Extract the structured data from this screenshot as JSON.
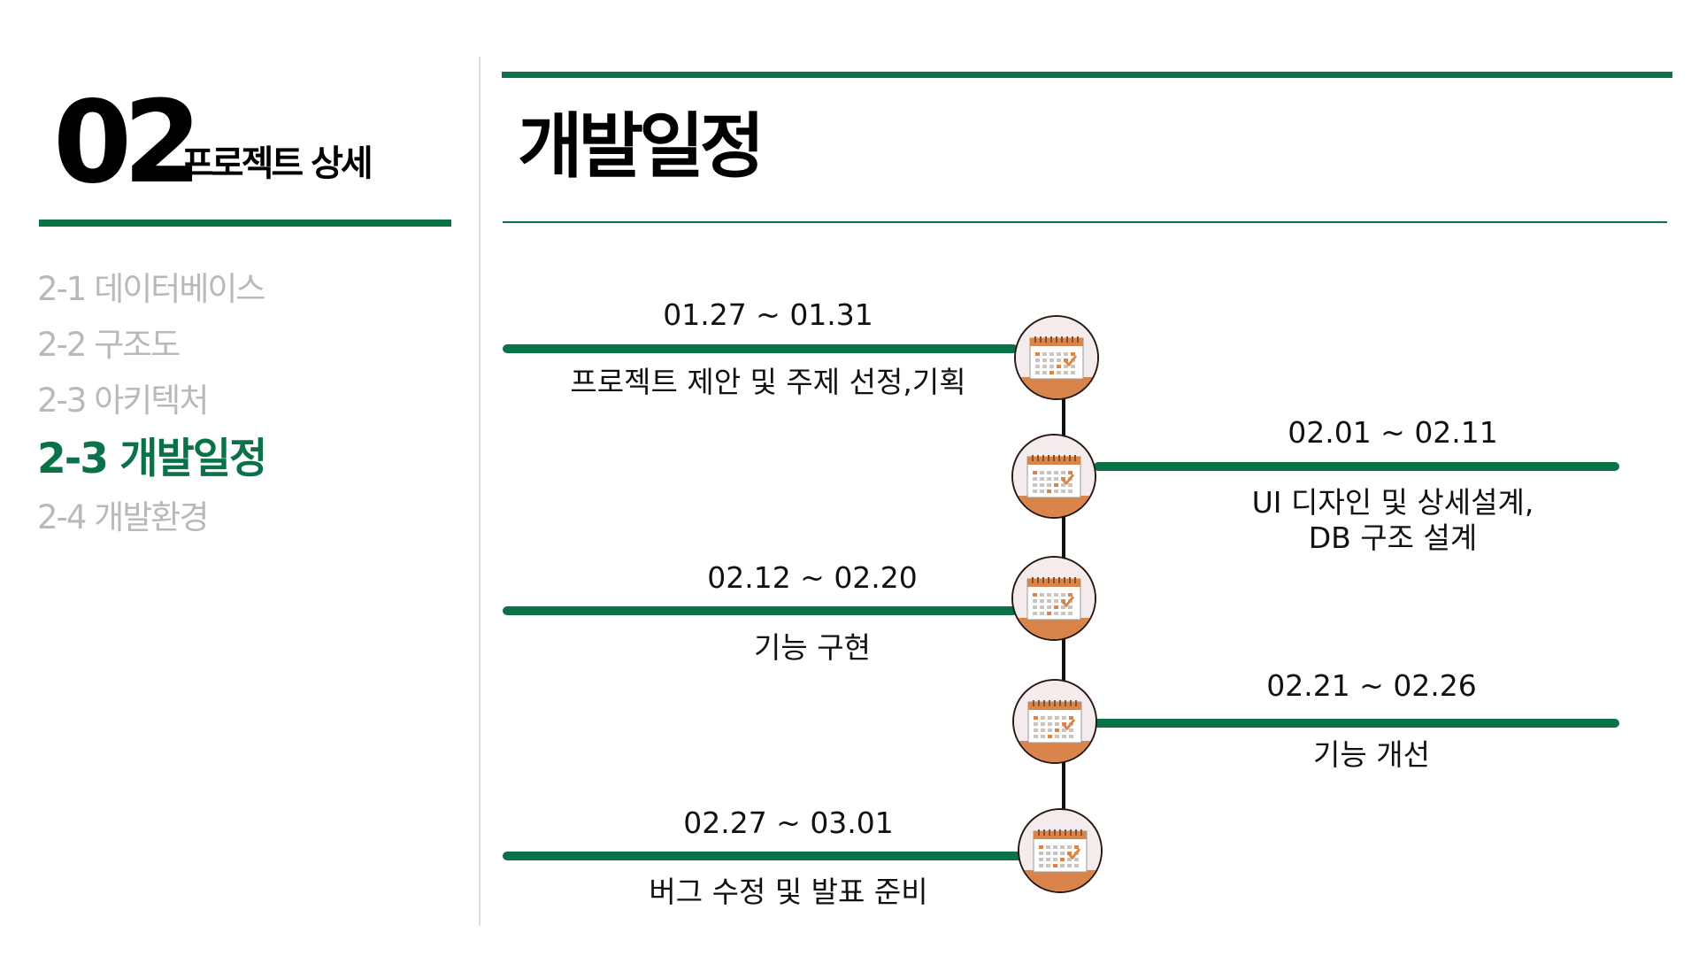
{
  "section": {
    "number": "02",
    "title": "프로젝트 상세"
  },
  "nav": {
    "items": [
      {
        "label": "2-1 데이터베이스",
        "active": false
      },
      {
        "label": "2-2 구조도",
        "active": false
      },
      {
        "label": "2-3 아키텍처",
        "active": false
      },
      {
        "label": "2-3 개발일정",
        "active": true
      },
      {
        "label": "2-4 개발환경",
        "active": false
      }
    ]
  },
  "page": {
    "title": "개발일정"
  },
  "timeline": [
    {
      "date": "01.27 ~ 01.31",
      "task": "프로젝트 제안 및 주제 선정,기획",
      "side": "left"
    },
    {
      "date": "02.01 ~ 02.11",
      "task": "UI 디자인 및 상세설계,\nDB 구조 설계",
      "side": "right"
    },
    {
      "date": "02.12 ~ 02.20",
      "task": "기능 구현",
      "side": "left"
    },
    {
      "date": "02.21 ~ 02.26",
      "task": "기능 개선",
      "side": "right"
    },
    {
      "date": "02.27 ~ 03.01",
      "task": "버그 수정 및 발표 준비",
      "side": "left"
    }
  ],
  "colors": {
    "accent": "#0a7249",
    "active_text": "#0a7249",
    "inactive_text": "#b9b9b9",
    "node_orange": "#d9844a",
    "node_bg": "#f4ecec"
  },
  "icons": {
    "timeline_node": "calendar-icon"
  }
}
